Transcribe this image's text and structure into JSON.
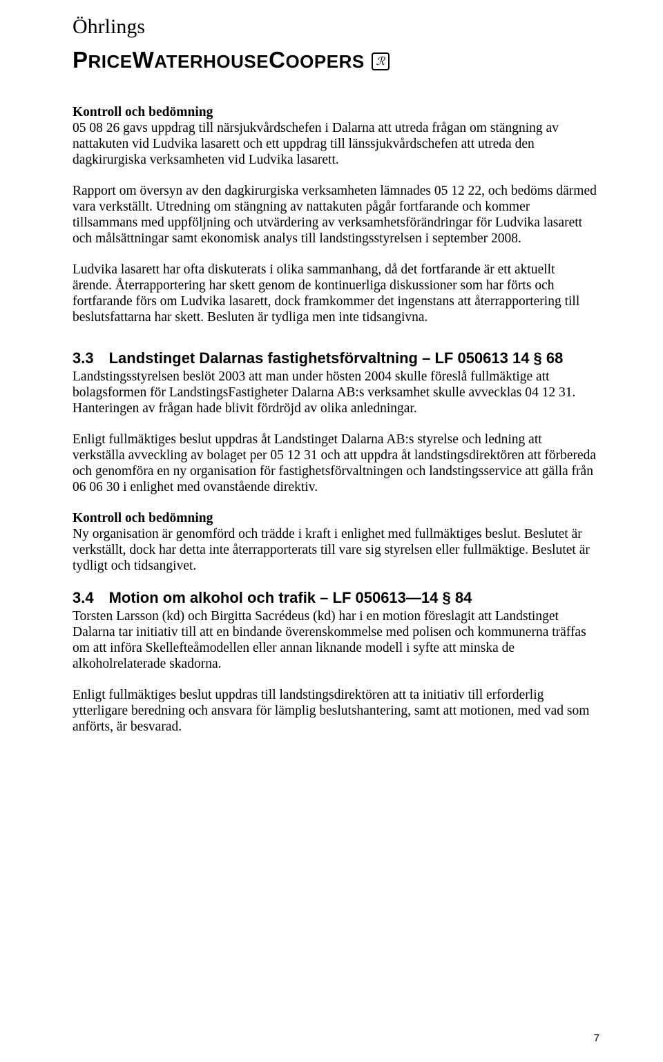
{
  "logo": {
    "top": "Öhrlings",
    "bottom_pre": "P",
    "bottom_mid1": "RICE",
    "bottom_mid2": "W",
    "bottom_mid3": "ATERHOUSE",
    "bottom_mid4": "C",
    "bottom_mid5": "OOPERS",
    "mark": "ℛ"
  },
  "body": {
    "p1_bold": "Kontroll och bedömning",
    "p1": "05 08 26 gavs uppdrag till närsjukvårdschefen i Dalarna att utreda frågan om stängning av nattakuten vid Ludvika lasarett och ett uppdrag till länssjukvårdschefen att utreda den dagkirurgiska verksamheten vid Ludvika lasarett.",
    "p2": "Rapport om översyn av den dagkirurgiska verksamheten lämnades 05 12 22, och bedöms därmed vara verkställt. Utredning om stängning av nattakuten pågår fortfarande och kommer tillsammans med uppföljning och utvärdering av verksamhetsförändringar för Ludvika lasarett och målsättningar samt ekonomisk analys till landstingsstyrelsen i september 2008.",
    "p3": "Ludvika lasarett har ofta diskuterats i olika sammanhang, då det fortfarande är ett aktuellt ärende. Återrapportering har skett genom de kontinuerliga diskussioner som har förts och fortfarande förs om Ludvika lasarett, dock framkommer det ingenstans att återrapportering till beslutsfattarna har skett. Besluten är tydliga men inte tidsangivna."
  },
  "s33": {
    "num": "3.3",
    "title": "Landstinget Dalarnas fastighetsförvaltning – LF 050613 14 § 68",
    "p1": "Landstingsstyrelsen beslöt 2003 att man under hösten 2004 skulle föreslå fullmäktige att bolagsformen för LandstingsFastigheter Dalarna AB:s verksamhet skulle avvecklas 04 12 31. Hanteringen av frågan hade blivit fördröjd av olika anledningar.",
    "p2": "Enligt fullmäktiges beslut uppdras åt Landstinget Dalarna AB:s styrelse och ledning att verkställa avveckling av bolaget per 05 12 31 och att uppdra åt landstingsdirektören att förbereda och genomföra en ny organisation för fastighetsförvaltningen och landstingsservice att gälla från 06 06 30 i enlighet med ovanstående direktiv.",
    "p3_bold": "Kontroll och bedömning",
    "p3": "Ny organisation är genomförd och trädde i kraft i enlighet med fullmäktiges beslut. Beslutet är verkställt, dock har detta inte återrapporterats till vare sig styrelsen eller fullmäktige. Beslutet är tydligt och tidsangivet."
  },
  "s34": {
    "num": "3.4",
    "title": "Motion om alkohol och trafik – LF 050613—14 § 84",
    "p1": "Torsten Larsson (kd) och Birgitta Sacrédeus (kd) har i en motion föreslagit att Landstinget Dalarna tar initiativ till att en bindande överenskommelse med polisen och kommunerna träffas om att införa Skellefteåmodellen eller annan liknande modell i syfte att minska de alkoholrelaterade skadorna.",
    "p2": "Enligt fullmäktiges beslut uppdras till landstingsdirektören att ta initiativ till erforderlig ytterligare beredning och ansvara för lämplig beslutshantering, samt att motionen, med vad som anförts, är besvarad."
  },
  "page_number": "7",
  "colors": {
    "text": "#000000",
    "bg": "#ffffff"
  }
}
